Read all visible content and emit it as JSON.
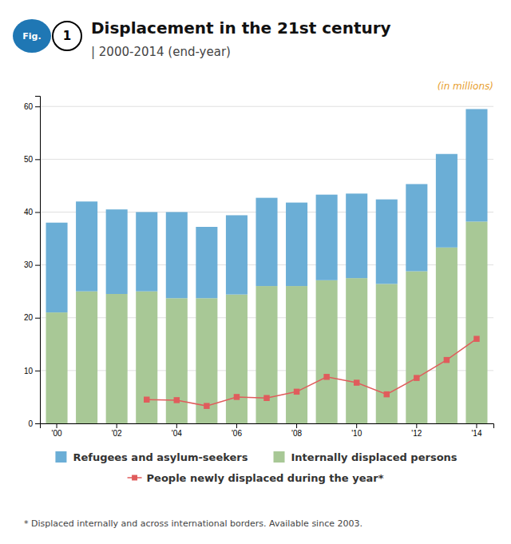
{
  "chart_data": {
    "type": "bar",
    "title": "Displacement in the 21st century",
    "subtitle": "| 2000-2014 (end-year)",
    "categories": [
      "'00",
      null,
      "'02",
      null,
      "'04",
      null,
      "'06",
      null,
      "'08",
      null,
      "'10",
      null,
      "'12",
      null,
      "'14"
    ],
    "series": [
      {
        "name": "Internally displaced persons",
        "color": "#a8c896",
        "values": [
          21.0,
          25.0,
          24.5,
          25.0,
          23.7,
          23.7,
          24.4,
          26.0,
          26.0,
          27.1,
          27.5,
          26.4,
          28.8,
          33.3,
          38.2
        ]
      },
      {
        "name": "Refugees and asylum-seekers",
        "color": "#6baed6",
        "values": [
          17.0,
          17.0,
          16.0,
          15.0,
          16.3,
          13.5,
          15.0,
          16.7,
          15.8,
          16.2,
          16.0,
          16.0,
          16.5,
          17.7,
          21.3
        ]
      },
      {
        "name": "People newly displaced during the year*",
        "type": "line",
        "color": "#e05c5c",
        "marker": "square",
        "values": [
          null,
          null,
          null,
          4.5,
          4.4,
          3.3,
          5.0,
          4.8,
          6.0,
          8.8,
          7.7,
          5.5,
          8.6,
          12.0,
          16.0
        ]
      }
    ],
    "stacked": true,
    "ylim": [
      0,
      62
    ],
    "yticks": [
      0,
      10,
      20,
      30,
      40,
      50,
      60
    ],
    "grid": true,
    "legend": "bottom",
    "annotations": [
      "Fig.",
      "1",
      "(in millions)",
      "* Displaced internally and across international borders. Available since 2003."
    ]
  }
}
